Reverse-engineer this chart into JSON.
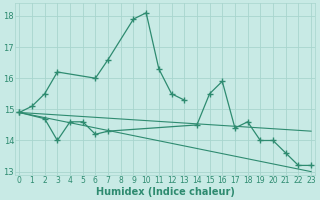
{
  "xlabel": "Humidex (Indice chaleur)",
  "x_values": [
    0,
    1,
    2,
    3,
    4,
    5,
    6,
    7,
    8,
    9,
    10,
    11,
    12,
    13,
    14,
    15,
    16,
    17,
    18,
    19,
    20,
    21,
    22,
    23
  ],
  "series_peak": [
    14.9,
    15.1,
    15.5,
    16.2,
    null,
    null,
    16.0,
    16.6,
    null,
    17.9,
    18.1,
    16.3,
    15.5,
    15.3,
    null,
    null,
    null,
    null,
    null,
    null,
    null,
    null,
    null,
    null
  ],
  "series_flat": [
    14.9,
    null,
    14.7,
    14.0,
    14.6,
    14.6,
    14.2,
    14.3,
    null,
    null,
    null,
    null,
    null,
    null,
    14.5,
    15.5,
    15.9,
    14.4,
    14.6,
    14.0,
    14.0,
    13.6,
    13.2,
    13.2
  ],
  "trend1": [
    14.9,
    13.0
  ],
  "trend2": [
    14.9,
    14.3
  ],
  "ylim": [
    12.9,
    18.4
  ],
  "xlim": [
    -0.3,
    23.3
  ],
  "yticks": [
    13,
    14,
    15,
    16,
    17,
    18
  ],
  "xticks": [
    0,
    1,
    2,
    3,
    4,
    5,
    6,
    7,
    8,
    9,
    10,
    11,
    12,
    13,
    14,
    15,
    16,
    17,
    18,
    19,
    20,
    21,
    22,
    23
  ],
  "line_color": "#2E8B70",
  "bg_color": "#C8EAE5",
  "grid_color": "#A8D5CE",
  "tick_color": "#2E8B70",
  "label_color": "#2E8B70"
}
